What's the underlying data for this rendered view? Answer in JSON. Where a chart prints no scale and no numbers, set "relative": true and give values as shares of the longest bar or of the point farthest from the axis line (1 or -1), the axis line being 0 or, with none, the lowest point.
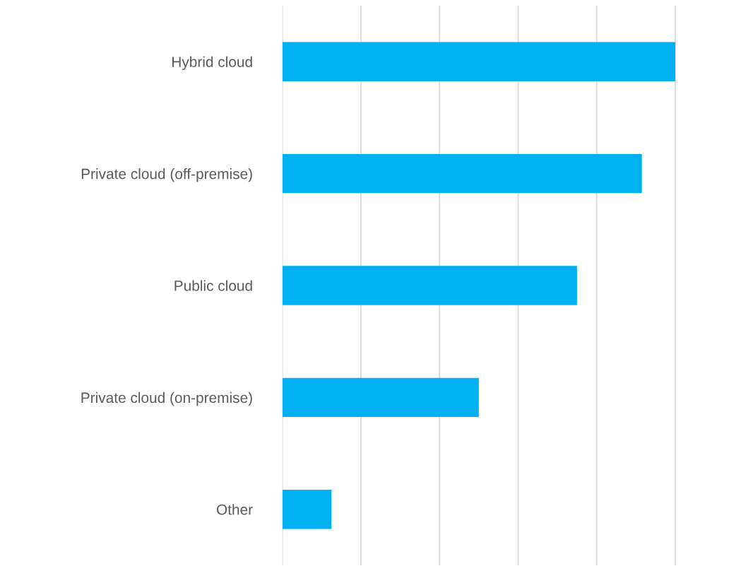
{
  "chart_data": {
    "type": "bar",
    "orientation": "horizontal",
    "relative": true,
    "categories": [
      "Hybrid cloud",
      "Private cloud (off-premise)",
      "Public cloud",
      "Private cloud (on-premise)",
      "Other"
    ],
    "values": [
      1,
      0.915,
      0.75,
      0.5,
      0.125
    ],
    "color": "#00b0f0",
    "grid": "x"
  }
}
